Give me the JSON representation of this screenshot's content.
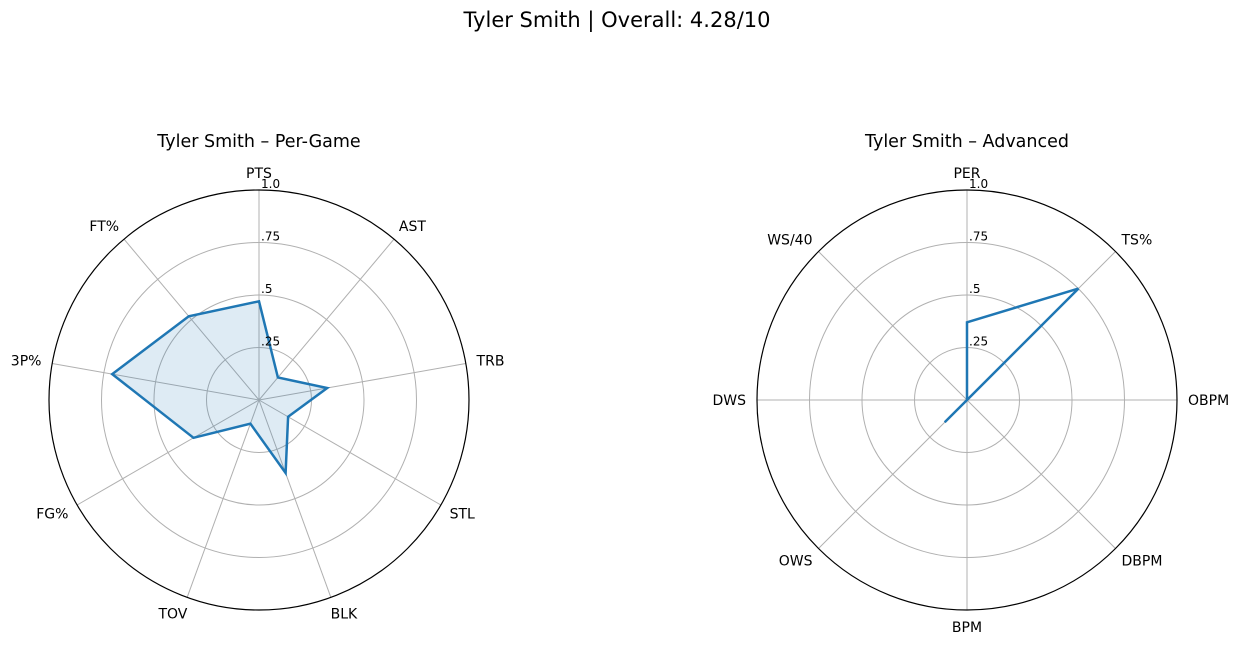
{
  "suptitle": "Tyler Smith | Overall: 4.28/10",
  "colors": {
    "line": "#1f77b4",
    "fill": "#1f77b4",
    "grid": "#b0b0b0",
    "frame": "#000000"
  },
  "chart_data": [
    {
      "type": "radar",
      "title": "Tyler Smith – Per-Game",
      "categories": [
        "PTS",
        "AST",
        "TRB",
        "STL",
        "BLK",
        "TOV",
        "FG%",
        "3P%",
        "FT%"
      ],
      "values": [
        0.47,
        0.14,
        0.33,
        0.16,
        0.37,
        0.12,
        0.36,
        0.71,
        0.52
      ],
      "rlim": [
        0,
        1.0
      ],
      "rticks": [
        0.25,
        0.5,
        0.75,
        1.0
      ],
      "rtick_labels": [
        ".25",
        ".5",
        ".75",
        "1.0"
      ],
      "filled": true,
      "grid": true
    },
    {
      "type": "radar",
      "title": "Tyler Smith – Advanced",
      "categories": [
        "PER",
        "TS%",
        "OBPM",
        "DBPM",
        "BPM",
        "OWS",
        "DWS",
        "WS/40"
      ],
      "values": [
        0.37,
        0.75,
        0.0,
        0.0,
        0.0,
        0.15,
        0.0,
        0.0
      ],
      "rlim": [
        0,
        1.0
      ],
      "rticks": [
        0.25,
        0.5,
        0.75,
        1.0
      ],
      "rtick_labels": [
        ".25",
        ".5",
        ".75",
        "1.0"
      ],
      "filled": false,
      "grid": true
    }
  ]
}
